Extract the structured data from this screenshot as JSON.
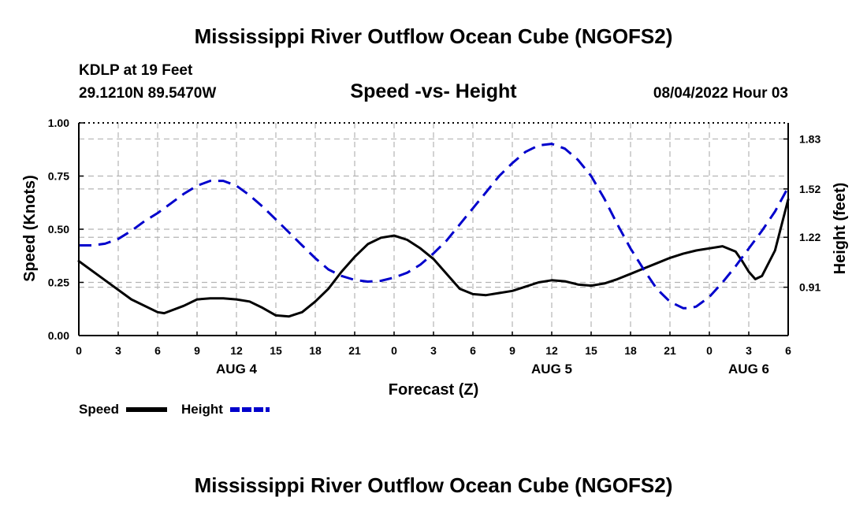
{
  "header": {
    "title_top": "Mississippi River Outflow Ocean Cube (NGOFS2)",
    "station": "KDLP at 19 Feet",
    "coords": "29.1210N  89.5470W",
    "subtitle": "Speed -vs- Height",
    "datetime": "08/04/2022 Hour 03",
    "title_bottom": "Mississippi River Outflow Ocean Cube (NGOFS2)"
  },
  "chart_data": {
    "type": "line",
    "title": "Speed -vs- Height",
    "xlabel": "Forecast (Z)",
    "ylabel": "Speed (Knots)",
    "y2label": "Height (feet)",
    "x_range": [
      0,
      54
    ],
    "ylim": [
      0,
      1
    ],
    "y2lim": [
      0.61,
      1.93
    ],
    "x_tick_hours": [
      0,
      3,
      6,
      9,
      12,
      15,
      18,
      21,
      24,
      27,
      30,
      33,
      36,
      39,
      42,
      45,
      48,
      51,
      54
    ],
    "x_tick_labels": [
      "0",
      "3",
      "6",
      "9",
      "12",
      "15",
      "18",
      "21",
      "0",
      "3",
      "6",
      "9",
      "12",
      "15",
      "18",
      "21",
      "0",
      "3",
      "6"
    ],
    "date_labels": [
      {
        "hour": 12,
        "label": "AUG 4"
      },
      {
        "hour": 36,
        "label": "AUG 5"
      },
      {
        "hour": 51,
        "label": "AUG 6"
      }
    ],
    "y_ticks": [
      0,
      0.25,
      0.5,
      0.75,
      1.0
    ],
    "y_tick_labels": [
      "0.00",
      "0.25",
      "0.50",
      "0.75",
      "1.00"
    ],
    "y2_ticks": [
      0.91,
      1.22,
      1.52,
      1.83
    ],
    "y2_tick_labels": [
      "0.91",
      "1.22",
      "1.52",
      "1.83"
    ],
    "grid": true,
    "legend_position": "bottom-left",
    "series": [
      {
        "name": "Speed",
        "axis": "left",
        "color": "#000000",
        "dash": "solid",
        "x": [
          0,
          2,
          4,
          6,
          6.5,
          8,
          9,
          10,
          11,
          12,
          13,
          14,
          15,
          16,
          17,
          18,
          19,
          20,
          21,
          22,
          23,
          24,
          25,
          26,
          27,
          28,
          29,
          30,
          31,
          32,
          33,
          34,
          35,
          36,
          37,
          38,
          39,
          40,
          41,
          42,
          43,
          44,
          45,
          46,
          47,
          48,
          49,
          50,
          50.5,
          51,
          51.5,
          52,
          53,
          54
        ],
        "values": [
          0.35,
          0.26,
          0.17,
          0.11,
          0.105,
          0.14,
          0.17,
          0.175,
          0.175,
          0.17,
          0.16,
          0.13,
          0.095,
          0.09,
          0.11,
          0.16,
          0.22,
          0.3,
          0.37,
          0.43,
          0.46,
          0.47,
          0.45,
          0.41,
          0.36,
          0.29,
          0.22,
          0.195,
          0.19,
          0.2,
          0.21,
          0.23,
          0.25,
          0.26,
          0.255,
          0.24,
          0.235,
          0.245,
          0.265,
          0.29,
          0.315,
          0.34,
          0.365,
          0.385,
          0.4,
          0.41,
          0.42,
          0.395,
          0.35,
          0.3,
          0.265,
          0.28,
          0.4,
          0.64
        ]
      },
      {
        "name": "Height",
        "axis": "right",
        "color": "#0000cc",
        "dash": "dashed",
        "x": [
          0,
          1,
          2,
          3,
          4,
          5,
          6,
          7,
          8,
          9,
          10,
          11,
          12,
          13,
          14,
          15,
          16,
          17,
          18,
          19,
          20,
          21,
          22,
          23,
          24,
          25,
          26,
          27,
          28,
          29,
          30,
          31,
          32,
          33,
          34,
          35,
          36,
          37,
          38,
          39,
          40,
          41,
          42,
          43,
          44,
          45,
          46,
          46.5,
          47,
          48,
          49,
          50,
          51,
          52,
          53,
          54
        ],
        "values": [
          1.17,
          1.17,
          1.18,
          1.21,
          1.26,
          1.32,
          1.37,
          1.43,
          1.49,
          1.54,
          1.57,
          1.57,
          1.54,
          1.48,
          1.41,
          1.33,
          1.25,
          1.17,
          1.09,
          1.02,
          0.98,
          0.955,
          0.945,
          0.95,
          0.97,
          1.0,
          1.05,
          1.12,
          1.2,
          1.3,
          1.4,
          1.5,
          1.6,
          1.68,
          1.75,
          1.79,
          1.8,
          1.77,
          1.7,
          1.6,
          1.46,
          1.3,
          1.15,
          1.02,
          0.9,
          0.82,
          0.78,
          0.78,
          0.79,
          0.85,
          0.94,
          1.04,
          1.15,
          1.26,
          1.38,
          1.53
        ]
      }
    ]
  }
}
